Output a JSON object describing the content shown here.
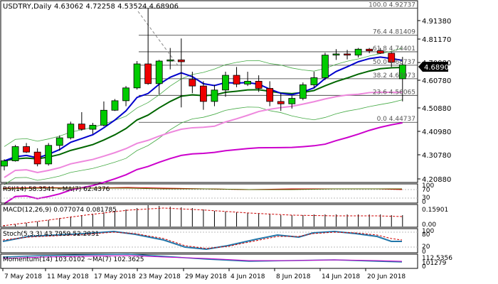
{
  "header": {
    "symbol": "USDTRY,Daily",
    "ohlc": "4.63062 4.72258 4.53524 4.68906"
  },
  "price_axis": {
    "ticks": [
      "4.91380",
      "4.81170",
      "4.70980",
      "4.60780",
      "4.50880",
      "4.40980",
      "4.30780",
      "4.20880"
    ],
    "current_price": "4.68906",
    "current_price_color": "#ffffff"
  },
  "fib_levels": [
    {
      "label": "100.0 4.92737",
      "price": 4.92737
    },
    {
      "label": "76.4 4.81409",
      "price": 4.81409
    },
    {
      "label": "61.8 4.74401",
      "price": 4.74401
    },
    {
      "label": "50.0 4.68737",
      "price": 4.68737
    },
    {
      "label": "38.2 4.63073",
      "price": 4.63073
    },
    {
      "label": "23.6 4.56065",
      "price": 4.56065
    },
    {
      "label": "0.0 4.44737",
      "price": 4.44737
    }
  ],
  "date_axis": [
    "7 May 2018",
    "11 May 2018",
    "17 May 2018",
    "23 May 2018",
    "29 May 2018",
    "4 Jun 2018",
    "8 Jun 2018",
    "14 Jun 2018",
    "20 Jun 2018"
  ],
  "subpanels": {
    "rsi": {
      "label": "RSI(14) 58.3541 ~MA(7) 62.4376",
      "ticks": [
        "100",
        "70",
        "30",
        "0"
      ]
    },
    "macd": {
      "label": "MACD(12,26,9) 0.077074 0.081785",
      "ticks": [
        "0.15901",
        "0.00"
      ]
    },
    "stoch": {
      "label": "Stoch(5,3,3) 43.7959 52.2031",
      "ticks": [
        "100",
        "80",
        "20",
        "0"
      ]
    },
    "momentum": {
      "label": "Momentum(14) 103.0102 ~MA(7) 102.3625",
      "ticks": [
        "112.5356",
        "101279",
        "0"
      ]
    }
  },
  "colors": {
    "bull": "#00cc00",
    "bear": "#ee0000",
    "ema_fast": "#0000cc",
    "ema_slow": "#006600",
    "sma_pink": "#ee88dd",
    "sma_magenta": "#cc00cc",
    "bollinger": "#44aa44"
  },
  "chart_data": {
    "type": "candlestick",
    "title": "USDTRY,Daily",
    "ohlc_last": [
      4.63062,
      4.72258,
      4.53524,
      4.68906
    ],
    "ylim": [
      4.2,
      4.95
    ],
    "candles": [
      {
        "o": 4.263,
        "h": 4.292,
        "l": 4.245,
        "c": 4.285
      },
      {
        "o": 4.285,
        "h": 4.352,
        "l": 4.282,
        "c": 4.345
      },
      {
        "o": 4.345,
        "h": 4.36,
        "l": 4.318,
        "c": 4.322
      },
      {
        "o": 4.322,
        "h": 4.338,
        "l": 4.262,
        "c": 4.272
      },
      {
        "o": 4.272,
        "h": 4.36,
        "l": 4.265,
        "c": 4.35
      },
      {
        "o": 4.35,
        "h": 4.392,
        "l": 4.328,
        "c": 4.382
      },
      {
        "o": 4.382,
        "h": 4.45,
        "l": 4.375,
        "c": 4.44
      },
      {
        "o": 4.44,
        "h": 4.49,
        "l": 4.412,
        "c": 4.418
      },
      {
        "o": 4.418,
        "h": 4.445,
        "l": 4.398,
        "c": 4.435
      },
      {
        "o": 4.435,
        "h": 4.535,
        "l": 4.43,
        "c": 4.498
      },
      {
        "o": 4.498,
        "h": 4.545,
        "l": 4.495,
        "c": 4.538
      },
      {
        "o": 4.538,
        "h": 4.6,
        "l": 4.515,
        "c": 4.592
      },
      {
        "o": 4.592,
        "h": 4.705,
        "l": 4.585,
        "c": 4.693
      },
      {
        "o": 4.693,
        "h": 4.928,
        "l": 4.605,
        "c": 4.61
      },
      {
        "o": 4.61,
        "h": 4.71,
        "l": 4.565,
        "c": 4.705
      },
      {
        "o": 4.705,
        "h": 4.76,
        "l": 4.67,
        "c": 4.71
      },
      {
        "o": 4.71,
        "h": 4.8,
        "l": 4.51,
        "c": 4.702
      },
      {
        "o": 4.628,
        "h": 4.66,
        "l": 4.57,
        "c": 4.6
      },
      {
        "o": 4.6,
        "h": 4.62,
        "l": 4.5,
        "c": 4.535
      },
      {
        "o": 4.535,
        "h": 4.605,
        "l": 4.515,
        "c": 4.583
      },
      {
        "o": 4.583,
        "h": 4.66,
        "l": 4.555,
        "c": 4.645
      },
      {
        "o": 4.645,
        "h": 4.68,
        "l": 4.595,
        "c": 4.608
      },
      {
        "o": 4.608,
        "h": 4.66,
        "l": 4.6,
        "c": 4.62
      },
      {
        "o": 4.62,
        "h": 4.645,
        "l": 4.575,
        "c": 4.59
      },
      {
        "o": 4.59,
        "h": 4.62,
        "l": 4.515,
        "c": 4.535
      },
      {
        "o": 4.535,
        "h": 4.57,
        "l": 4.495,
        "c": 4.525
      },
      {
        "o": 4.525,
        "h": 4.56,
        "l": 4.505,
        "c": 4.548
      },
      {
        "o": 4.548,
        "h": 4.615,
        "l": 4.54,
        "c": 4.605
      },
      {
        "o": 4.605,
        "h": 4.66,
        "l": 4.59,
        "c": 4.635
      },
      {
        "o": 4.635,
        "h": 4.74,
        "l": 4.625,
        "c": 4.73
      },
      {
        "o": 4.73,
        "h": 4.755,
        "l": 4.71,
        "c": 4.735
      },
      {
        "o": 4.735,
        "h": 4.752,
        "l": 4.712,
        "c": 4.73
      },
      {
        "o": 4.73,
        "h": 4.76,
        "l": 4.72,
        "c": 4.755
      },
      {
        "o": 4.755,
        "h": 4.76,
        "l": 4.738,
        "c": 4.748
      },
      {
        "o": 4.748,
        "h": 4.76,
        "l": 4.735,
        "c": 4.738
      },
      {
        "o": 4.738,
        "h": 4.742,
        "l": 4.68,
        "c": 4.7
      },
      {
        "o": 4.63062,
        "h": 4.72258,
        "l": 4.53524,
        "c": 4.68906
      }
    ],
    "rsi": {
      "value": 58.3541,
      "ma": 62.4376,
      "range": [
        0,
        100
      ],
      "levels": [
        70,
        30
      ]
    },
    "macd": {
      "value": 0.077074,
      "signal": 0.081785
    },
    "stochastic": {
      "k": 43.7959,
      "d": 52.2031,
      "range": [
        0,
        100
      ],
      "levels": [
        80,
        20
      ]
    },
    "momentum": {
      "value": 103.0102,
      "ma": 102.3625
    }
  }
}
